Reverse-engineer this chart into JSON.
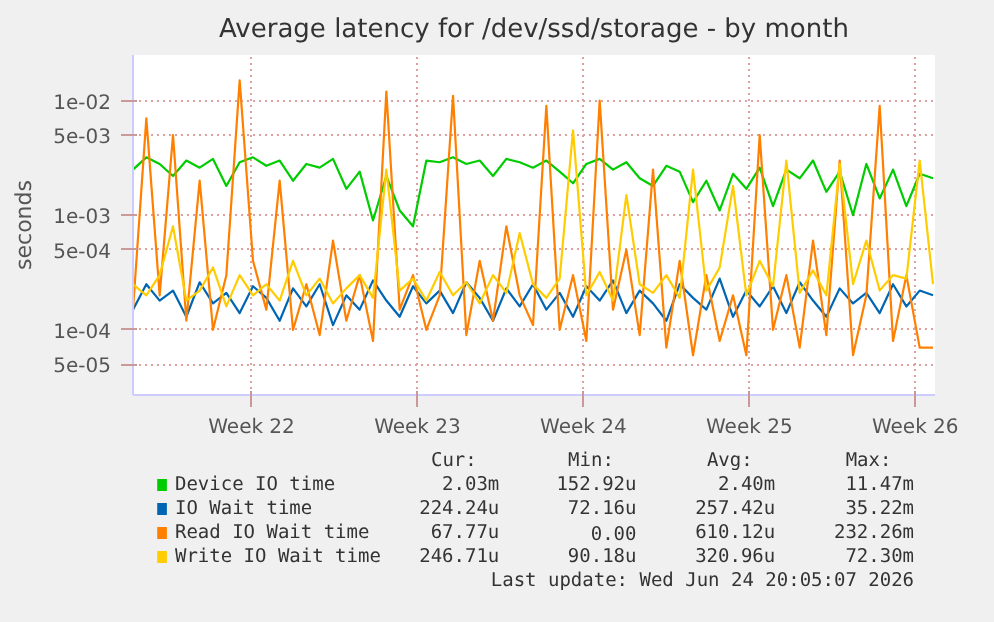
{
  "chart_data": {
    "type": "line",
    "title": "Average latency for /dev/ssd/storage - by month",
    "ylabel": "seconds",
    "x": [
      "2026-05-20T00:00",
      "2026-05-20T13:30",
      "2026-05-21T03:00",
      "2026-05-21T16:30",
      "2026-05-22T06:00",
      "2026-05-22T19:30",
      "2026-05-23T09:00",
      "2026-05-23T22:30",
      "2026-05-24T12:00",
      "2026-05-25T01:30",
      "2026-05-25T15:00",
      "2026-05-26T04:30",
      "2026-05-26T18:00",
      "2026-05-27T07:30",
      "2026-05-27T21:00",
      "2026-05-28T10:30",
      "2026-05-29T00:00",
      "2026-05-29T13:30",
      "2026-05-30T03:00",
      "2026-05-30T16:30",
      "2026-05-31T06:00",
      "2026-05-31T19:30",
      "2026-06-01T09:00",
      "2026-06-01T22:30",
      "2026-06-02T12:00",
      "2026-06-03T01:30",
      "2026-06-03T15:00",
      "2026-06-04T04:30",
      "2026-06-04T18:00",
      "2026-06-05T07:30",
      "2026-06-05T21:00",
      "2026-06-06T10:30",
      "2026-06-07T00:00",
      "2026-06-07T13:30",
      "2026-06-08T03:00",
      "2026-06-08T16:30",
      "2026-06-09T06:00",
      "2026-06-09T19:30",
      "2026-06-10T09:00",
      "2026-06-10T22:30",
      "2026-06-11T12:00",
      "2026-06-12T01:30",
      "2026-06-12T15:00",
      "2026-06-13T04:30",
      "2026-06-13T18:00",
      "2026-06-14T07:30",
      "2026-06-14T21:00",
      "2026-06-15T10:30",
      "2026-06-16T00:00",
      "2026-06-16T13:30",
      "2026-06-17T03:00",
      "2026-06-17T16:30",
      "2026-06-18T06:00",
      "2026-06-18T19:30",
      "2026-06-19T09:00",
      "2026-06-19T22:30",
      "2026-06-20T12:00",
      "2026-06-21T01:30",
      "2026-06-21T15:00",
      "2026-06-22T04:30",
      "2026-06-22T18:00"
    ],
    "series": [
      {
        "name": "Device IO time",
        "color": "#00cc00",
        "values": [
          0.0025,
          0.0032,
          0.0028,
          0.0022,
          0.003,
          0.0026,
          0.0031,
          0.0018,
          0.0029,
          0.0032,
          0.0027,
          0.003,
          0.002,
          0.0028,
          0.0026,
          0.0031,
          0.0017,
          0.0024,
          0.0009,
          0.0022,
          0.0011,
          0.0008,
          0.003,
          0.0029,
          0.0032,
          0.0028,
          0.003,
          0.0022,
          0.0031,
          0.0029,
          0.0026,
          0.003,
          0.0024,
          0.0019,
          0.0028,
          0.0031,
          0.0025,
          0.0029,
          0.0021,
          0.0018,
          0.0027,
          0.0024,
          0.0013,
          0.002,
          0.0011,
          0.0023,
          0.0017,
          0.0026,
          0.0012,
          0.0025,
          0.0021,
          0.003,
          0.0016,
          0.0024,
          0.001,
          0.0028,
          0.0014,
          0.0025,
          0.0012,
          0.0023,
          0.0021
        ]
      },
      {
        "name": "IO Wait time",
        "color": "#0066b3",
        "values": [
          0.00015,
          0.00025,
          0.00018,
          0.00022,
          0.00013,
          0.00026,
          0.00017,
          0.00021,
          0.00014,
          0.00024,
          0.00019,
          0.00012,
          0.00023,
          0.00016,
          0.00025,
          0.00011,
          0.0002,
          0.00015,
          0.00027,
          0.00018,
          0.00013,
          0.00024,
          0.00017,
          0.00022,
          0.00014,
          0.00026,
          0.00019,
          0.00012,
          0.00023,
          0.00016,
          0.00025,
          0.00015,
          0.00021,
          0.00013,
          0.00024,
          0.00018,
          0.00027,
          0.00014,
          0.00022,
          0.00017,
          0.00012,
          0.00025,
          0.00019,
          0.00015,
          0.00028,
          0.00013,
          0.00022,
          0.00016,
          0.00024,
          0.00014,
          0.00026,
          0.00018,
          0.00013,
          0.00023,
          0.00017,
          0.00021,
          0.00014,
          0.00025,
          0.00016,
          0.00022,
          0.0002
        ]
      },
      {
        "name": "Read IO Wait time",
        "color": "#ff8000",
        "values": [
          0.00015,
          0.007,
          0.0002,
          0.005,
          0.00012,
          0.002,
          0.0001,
          0.0003,
          0.015,
          0.0004,
          0.00015,
          0.002,
          0.0001,
          0.00025,
          9e-05,
          0.0006,
          0.00012,
          0.0003,
          8e-05,
          0.012,
          0.00015,
          0.0003,
          0.0001,
          0.0002,
          0.011,
          9e-05,
          0.0004,
          0.00012,
          0.0008,
          0.0002,
          0.00011,
          0.009,
          0.0001,
          0.0003,
          8e-05,
          0.01,
          0.00015,
          0.0005,
          9e-05,
          0.0025,
          7e-05,
          0.0004,
          6e-05,
          0.0003,
          8e-05,
          0.0002,
          6e-05,
          0.005,
          0.0001,
          0.0003,
          7e-05,
          0.0006,
          9e-05,
          0.003,
          6e-05,
          0.0002,
          0.009,
          8e-05,
          0.0003,
          7e-05,
          7e-05
        ]
      },
      {
        "name": "Write IO Wait time",
        "color": "#ffcc00",
        "values": [
          0.00025,
          0.0002,
          0.0003,
          0.0008,
          0.00018,
          0.00022,
          0.00035,
          0.00016,
          0.0003,
          0.0002,
          0.00025,
          0.00018,
          0.0004,
          0.0002,
          0.00028,
          0.00017,
          0.00023,
          0.0003,
          0.00019,
          0.0025,
          0.00022,
          0.00028,
          0.00018,
          0.00032,
          0.0002,
          0.00026,
          0.00017,
          0.0003,
          0.00021,
          0.0007,
          0.00025,
          0.00019,
          0.00028,
          0.0055,
          0.0002,
          0.00032,
          0.00018,
          0.0015,
          0.00025,
          0.00021,
          0.0003,
          0.00019,
          0.0025,
          0.00022,
          0.00035,
          0.0018,
          0.0002,
          0.0004,
          0.00024,
          0.003,
          0.00021,
          0.00033,
          0.0002,
          0.0028,
          0.00025,
          0.0006,
          0.00022,
          0.0003,
          0.00028,
          0.003,
          0.00025
        ]
      }
    ],
    "xlim": [
      "2026-05-20T00:00",
      "2026-06-22T20:00"
    ],
    "xticks": [
      {
        "value": "2026-05-25",
        "label": "Week 22"
      },
      {
        "value": "2026-06-01",
        "label": "Week 23"
      },
      {
        "value": "2026-06-08",
        "label": "Week 24"
      },
      {
        "value": "2026-06-15",
        "label": "Week 25"
      },
      {
        "value": "2026-06-22",
        "label": "Week 26"
      }
    ],
    "ylim": [
      2.7e-05,
      0.025
    ],
    "yticks": [
      {
        "value": 5e-05,
        "label": "5e-05"
      },
      {
        "value": 0.0001,
        "label": "1e-04"
      },
      {
        "value": 0.0005,
        "label": "5e-04"
      },
      {
        "value": 0.001,
        "label": "1e-03"
      },
      {
        "value": 0.005,
        "label": "5e-03"
      },
      {
        "value": 0.01,
        "label": "1e-02"
      }
    ],
    "log": true,
    "grid": true,
    "legend": "bottom",
    "marker": "none",
    "line_style": "solid",
    "annotations": [
      "Cur:",
      "Min:",
      "Avg:",
      "Max:",
      "2.03m",
      "152.92u",
      "2.40m",
      "11.47m",
      "224.24u",
      "72.16u",
      "257.42u",
      "35.22m",
      "67.77u",
      "0.00",
      "610.12u",
      "232.26m",
      "246.71u",
      "90.18u",
      "320.96u",
      "72.30m",
      "Last update: Wed Jun 24 20:05:07 2026"
    ]
  }
}
